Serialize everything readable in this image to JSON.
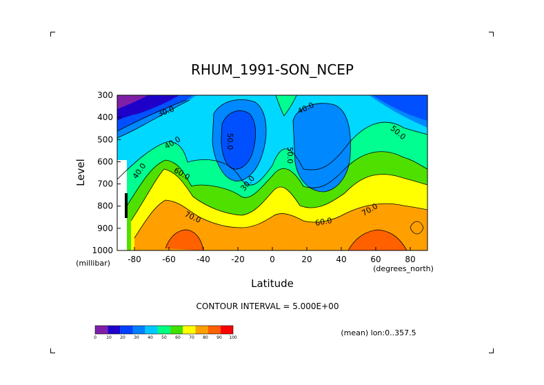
{
  "chart_data": {
    "type": "heatmap",
    "title": "RHUM_1991-SON_NCEP",
    "xlabel": "Latitude",
    "xunit": "(degrees_north)",
    "ylabel": "Level",
    "yunit": "(millibar)",
    "x_ticks": [
      "-80",
      "-60",
      "-40",
      "-20",
      "0",
      "20",
      "40",
      "60",
      "80"
    ],
    "y_ticks": [
      "300",
      "400",
      "500",
      "600",
      "700",
      "800",
      "900",
      "1000"
    ],
    "xlim": [
      -90,
      90
    ],
    "ylim": [
      300,
      1000
    ],
    "contour_interval_text": "CONTOUR INTERVAL = 5.000E+00",
    "mean_text": "(mean) lon:0..357.5",
    "contour_labels": [
      "30.0",
      "30.0",
      "40.0",
      "40.0",
      "40.0",
      "50.0",
      "50.0",
      "50.0",
      "60.0",
      "60.0",
      "70.0",
      "70.0"
    ],
    "colorbar": {
      "ticks": [
        "0",
        "10",
        "20",
        "30",
        "40",
        "50",
        "60",
        "70",
        "80",
        "90",
        "100"
      ],
      "colors": [
        "#7f1fa8",
        "#1e00c8",
        "#0040ff",
        "#0080ff",
        "#00c8ff",
        "#00ff80",
        "#40e000",
        "#ffff00",
        "#ffa000",
        "#ff6000",
        "#ff0000"
      ]
    }
  }
}
